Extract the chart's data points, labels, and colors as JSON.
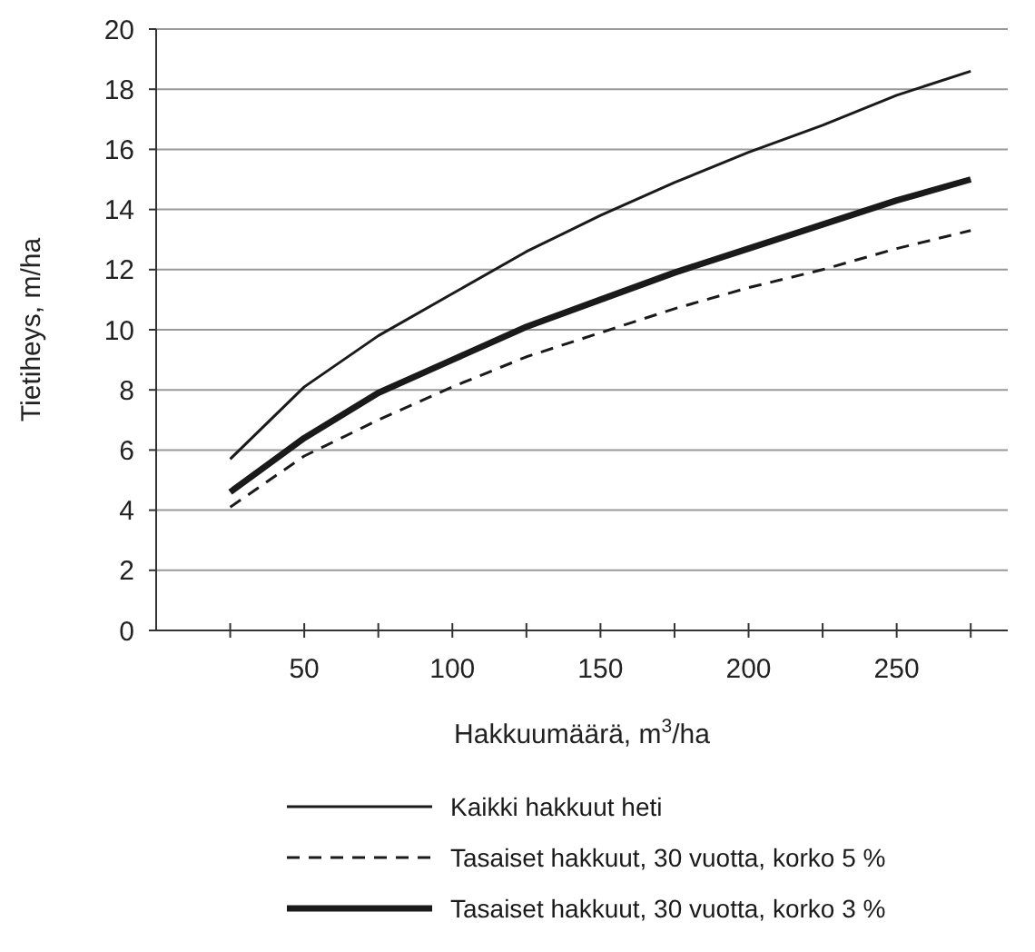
{
  "chart_data": {
    "type": "line",
    "xlabel": "Hakkuumäärä, m$^{3}$/ha",
    "ylabel": "Tietiheys, m/ha",
    "x": [
      25,
      50,
      75,
      100,
      125,
      150,
      175,
      200,
      225,
      250,
      275
    ],
    "xlim": [
      0,
      287.5
    ],
    "xticks": [
      {
        "value": 25,
        "label": null
      },
      50,
      {
        "value": 75,
        "label": null
      },
      100,
      {
        "value": 125,
        "label": null
      },
      150,
      {
        "value": 175,
        "label": null
      },
      200,
      {
        "value": 225,
        "label": null
      },
      250,
      {
        "value": 275,
        "label": null
      }
    ],
    "ylim": [
      0,
      20
    ],
    "yticks": [
      0,
      2,
      4,
      6,
      8,
      10,
      12,
      14,
      16,
      18,
      20
    ],
    "grid": "y",
    "legend": "bottom",
    "marker": "none",
    "series": [
      {
        "name": "Kaikki hakkuut heti",
        "color": "#1a1a1a",
        "line_style": "solid",
        "values": [
          5.7,
          8.1,
          9.8,
          11.2,
          12.6,
          13.8,
          14.9,
          15.9,
          16.8,
          17.8,
          18.6
        ]
      },
      {
        "name": "Tasaiset hakkuut, 30 vuotta, korko 5 %",
        "color": "#1a1a1a",
        "line_style": "dashed",
        "values": [
          4.1,
          5.8,
          7.0,
          8.1,
          9.1,
          9.9,
          10.7,
          11.4,
          12.0,
          12.7,
          13.3
        ]
      },
      {
        "name": "Tasaiset hakkuut, 30 vuotta, korko 3 %",
        "color": "#1a1a1a",
        "line_style": "solid",
        "values": [
          4.6,
          6.4,
          7.9,
          9.0,
          10.1,
          11.0,
          11.9,
          12.7,
          13.5,
          14.3,
          15.0
        ]
      }
    ]
  }
}
